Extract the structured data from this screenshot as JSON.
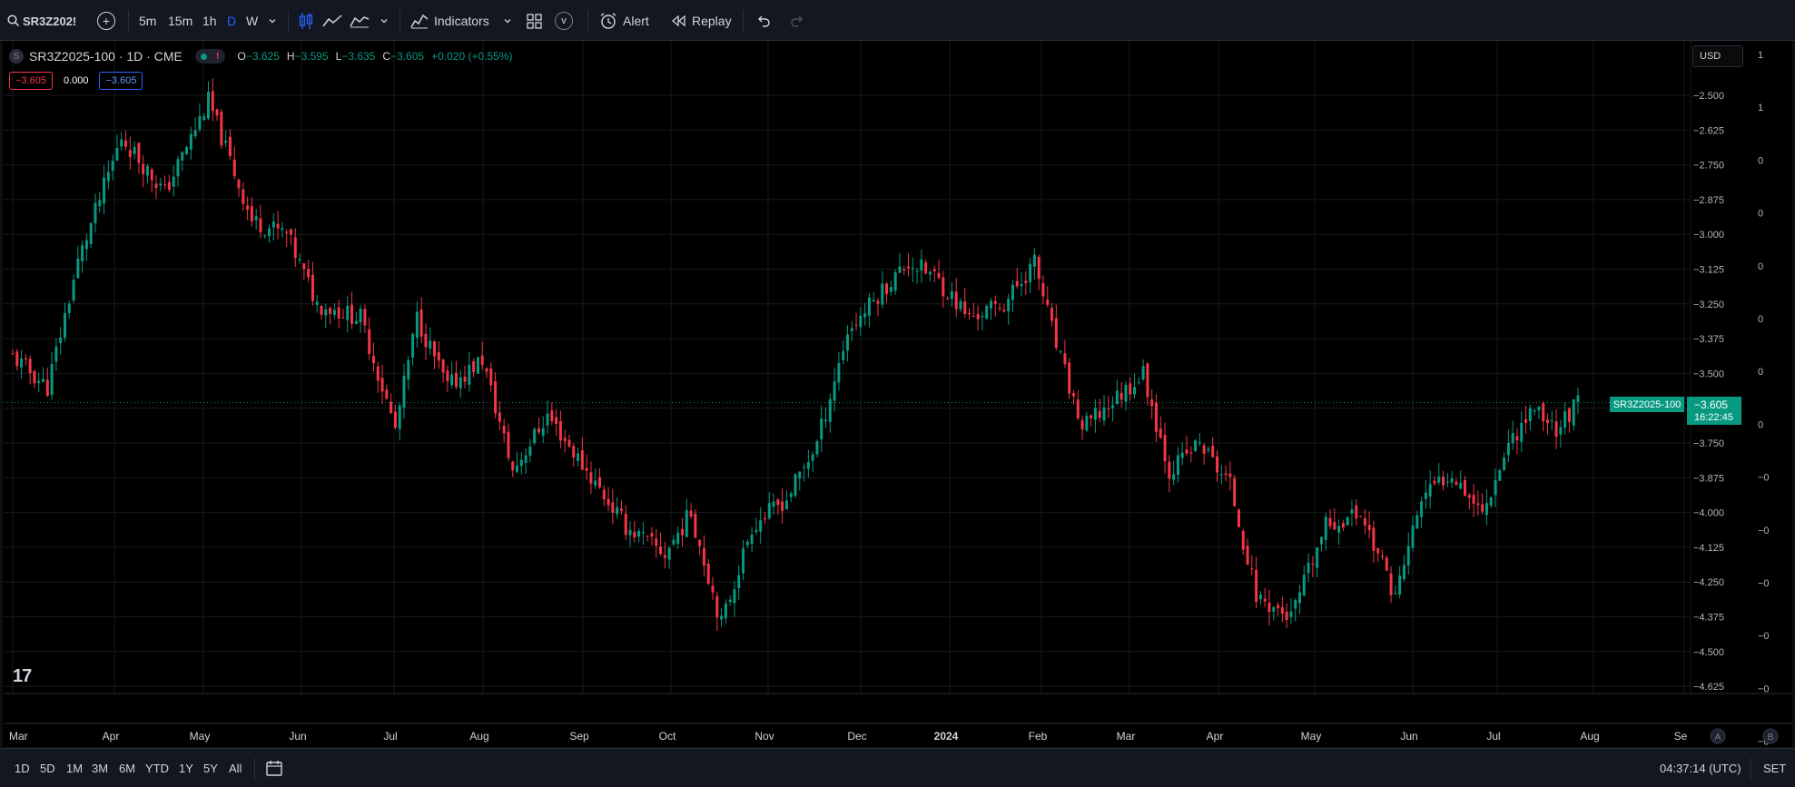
{
  "toolbar": {
    "symbol": "SR3Z202!",
    "timeframes": [
      "5m",
      "15m",
      "1h",
      "D",
      "W"
    ],
    "active_timeframe": "D",
    "indicators_label": "Indicators",
    "templates_label": "v",
    "alert_label": "Alert",
    "replay_label": "Replay"
  },
  "legend": {
    "symbol_title": "SR3Z2025-100 · 1D · CME",
    "symbol_icon": "S",
    "warning": "!",
    "open_label": "O",
    "open": "−3.625",
    "high_label": "H",
    "high": "−3.595",
    "low_label": "L",
    "low": "−3.635",
    "close_label": "C",
    "close": "−3.605",
    "change": "+0.020 (+0.55%)"
  },
  "badges": {
    "sell": "−3.605",
    "spread": "0.000",
    "buy": "−3.605"
  },
  "currency": "USD",
  "last_price": {
    "symbol": "SR3Z2025-100",
    "price": "−3.605",
    "countdown": "16:22:45"
  },
  "logo": "17",
  "bottom": {
    "ranges": [
      "1D",
      "5D",
      "1M",
      "3M",
      "6M",
      "YTD",
      "1Y",
      "5Y",
      "All"
    ],
    "clock": "04:37:14 (UTC)",
    "session": "SET"
  },
  "colors": {
    "up": "#089981",
    "down": "#f23645",
    "background": "#000000",
    "grid": "#1a1a1a",
    "accent": "#2962ff"
  },
  "chart_data": {
    "type": "candlestick",
    "y_ticks": [
      "−2.500",
      "−2.625",
      "−2.750",
      "−2.875",
      "−3.000",
      "−3.125",
      "−3.250",
      "−3.375",
      "−3.500",
      "−3.625",
      "−3.750",
      "−3.875",
      "−4.000",
      "−4.125",
      "−4.250",
      "−4.375",
      "−4.500",
      "−4.625"
    ],
    "y_tick_values": [
      -2.5,
      -2.625,
      -2.75,
      -2.875,
      -3.0,
      -3.125,
      -3.25,
      -3.375,
      -3.5,
      -3.625,
      -3.75,
      -3.875,
      -4.0,
      -4.125,
      -4.25,
      -4.375,
      -4.5,
      -4.625
    ],
    "second_scale_ticks": [
      "1",
      "1",
      "0",
      "0",
      "0",
      "0",
      "0",
      "0",
      "−0",
      "−0",
      "−0",
      "−0",
      "−0",
      "−0"
    ],
    "ylim": [
      -4.625,
      -2.45
    ],
    "x_ticks": [
      "Mar",
      "Apr",
      "May",
      "Jun",
      "Jul",
      "Aug",
      "Sep",
      "Oct",
      "Nov",
      "Dec",
      "2024",
      "Feb",
      "Mar",
      "Apr",
      "May",
      "Jun",
      "Jul",
      "Aug",
      "Se"
    ],
    "x_bold": "2024",
    "scale_buttons": [
      "A",
      "B"
    ],
    "last_value": -3.605,
    "series_points": [
      {
        "t": 0,
        "close": -3.44
      },
      {
        "t": 8,
        "close": -3.55
      },
      {
        "t": 15,
        "close": -3.1
      },
      {
        "t": 25,
        "close": -2.65
      },
      {
        "t": 35,
        "close": -2.85
      },
      {
        "t": 45,
        "close": -2.52
      },
      {
        "t": 55,
        "close": -2.95
      },
      {
        "t": 63,
        "close": -3.0
      },
      {
        "t": 70,
        "close": -3.25
      },
      {
        "t": 80,
        "close": -3.3
      },
      {
        "t": 88,
        "close": -3.7
      },
      {
        "t": 93,
        "close": -3.3
      },
      {
        "t": 100,
        "close": -3.55
      },
      {
        "t": 108,
        "close": -3.45
      },
      {
        "t": 115,
        "close": -3.85
      },
      {
        "t": 123,
        "close": -3.65
      },
      {
        "t": 132,
        "close": -3.85
      },
      {
        "t": 141,
        "close": -4.05
      },
      {
        "t": 150,
        "close": -4.15
      },
      {
        "t": 156,
        "close": -4.0
      },
      {
        "t": 163,
        "close": -4.4
      },
      {
        "t": 170,
        "close": -4.05
      },
      {
        "t": 178,
        "close": -3.95
      },
      {
        "t": 185,
        "close": -3.75
      },
      {
        "t": 192,
        "close": -3.35
      },
      {
        "t": 200,
        "close": -3.2
      },
      {
        "t": 206,
        "close": -3.1
      },
      {
        "t": 212,
        "close": -3.15
      },
      {
        "t": 220,
        "close": -3.3
      },
      {
        "t": 228,
        "close": -3.25
      },
      {
        "t": 235,
        "close": -3.1
      },
      {
        "t": 240,
        "close": -3.4
      },
      {
        "t": 246,
        "close": -3.7
      },
      {
        "t": 253,
        "close": -3.6
      },
      {
        "t": 260,
        "close": -3.5
      },
      {
        "t": 266,
        "close": -3.85
      },
      {
        "t": 273,
        "close": -3.75
      },
      {
        "t": 280,
        "close": -3.9
      },
      {
        "t": 286,
        "close": -4.3
      },
      {
        "t": 294,
        "close": -4.38
      },
      {
        "t": 302,
        "close": -4.05
      },
      {
        "t": 310,
        "close": -4.0
      },
      {
        "t": 318,
        "close": -4.3
      },
      {
        "t": 324,
        "close": -3.95
      },
      {
        "t": 331,
        "close": -3.85
      },
      {
        "t": 338,
        "close": -4.0
      },
      {
        "t": 344,
        "close": -3.75
      },
      {
        "t": 350,
        "close": -3.62
      },
      {
        "t": 355,
        "close": -3.7
      },
      {
        "t": 360,
        "close": -3.605
      }
    ]
  }
}
